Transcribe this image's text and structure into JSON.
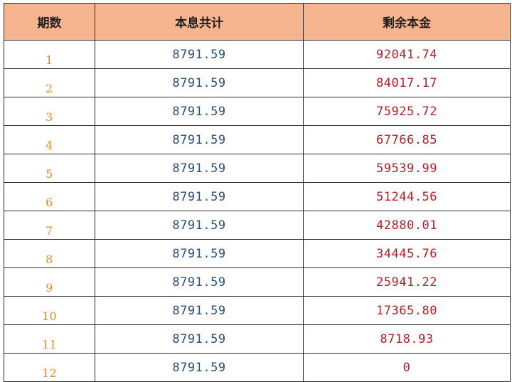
{
  "table": {
    "headers": [
      "期数",
      "本息共计",
      "剩余本金"
    ],
    "rows": [
      {
        "period": "1",
        "payment": "8791.59",
        "remaining": "92041.74"
      },
      {
        "period": "2",
        "payment": "8791.59",
        "remaining": "84017.17"
      },
      {
        "period": "3",
        "payment": "8791.59",
        "remaining": "75925.72"
      },
      {
        "period": "4",
        "payment": "8791.59",
        "remaining": "67766.85"
      },
      {
        "period": "5",
        "payment": "8791.59",
        "remaining": "59539.99"
      },
      {
        "period": "6",
        "payment": "8791.59",
        "remaining": "51244.56"
      },
      {
        "period": "7",
        "payment": "8791.59",
        "remaining": "42880.01"
      },
      {
        "period": "8",
        "payment": "8791.59",
        "remaining": "34445.76"
      },
      {
        "period": "9",
        "payment": "8791.59",
        "remaining": "25941.22"
      },
      {
        "period": "10",
        "payment": "8791.59",
        "remaining": "17365.80"
      },
      {
        "period": "11",
        "payment": "8791.59",
        "remaining": "8718.93"
      },
      {
        "period": "12",
        "payment": "8791.59",
        "remaining": "0"
      }
    ]
  },
  "colors": {
    "header_bg": "#f6b48e",
    "period_text": "#e08a2c",
    "payment_text": "#2c4f7c",
    "remaining_text": "#b3202a",
    "border": "#2b2b2b"
  }
}
